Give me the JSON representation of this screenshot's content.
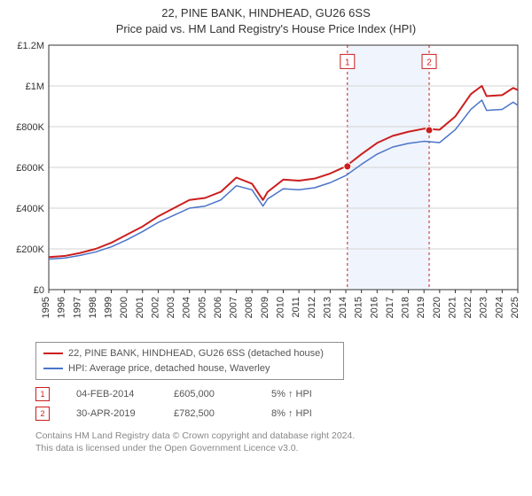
{
  "title": "22, PINE BANK, HINDHEAD, GU26 6SS",
  "subtitle": "Price paid vs. HM Land Registry's House Price Index (HPI)",
  "chart": {
    "type": "line",
    "background_color": "#ffffff",
    "grid_color": "#d3d3d3",
    "axis_color": "#333333",
    "tick_label_color": "#333333",
    "tick_fontsize": 11,
    "y": {
      "min": 0,
      "max": 1200000,
      "step": 200000,
      "tick_labels": [
        "£0",
        "£200K",
        "£400K",
        "£600K",
        "£800K",
        "£1M",
        "£1.2M"
      ]
    },
    "x": {
      "min": 1995,
      "max": 2025,
      "step": 1,
      "tick_labels": [
        "1995",
        "1996",
        "1997",
        "1998",
        "1999",
        "2000",
        "2001",
        "2002",
        "2003",
        "2004",
        "2005",
        "2006",
        "2007",
        "2008",
        "2009",
        "2010",
        "2011",
        "2012",
        "2013",
        "2014",
        "2015",
        "2016",
        "2017",
        "2018",
        "2019",
        "2020",
        "2021",
        "2022",
        "2023",
        "2024",
        "2025"
      ]
    },
    "highlight_band": {
      "x_from": 2014.1,
      "x_to": 2019.33,
      "fill": "#f0f4fc",
      "border_color": "#cc1e1e",
      "border_dash": "3 3"
    },
    "series": {
      "red": {
        "color": "#cc1e1e",
        "width": 2,
        "label": "22, PINE BANK, HINDHEAD, GU26 6SS (detached house)",
        "points": [
          [
            1995,
            160000
          ],
          [
            1996,
            165000
          ],
          [
            1997,
            180000
          ],
          [
            1998,
            200000
          ],
          [
            1999,
            230000
          ],
          [
            2000,
            270000
          ],
          [
            2001,
            310000
          ],
          [
            2002,
            360000
          ],
          [
            2003,
            400000
          ],
          [
            2004,
            440000
          ],
          [
            2005,
            450000
          ],
          [
            2006,
            480000
          ],
          [
            2007,
            550000
          ],
          [
            2008,
            520000
          ],
          [
            2008.7,
            440000
          ],
          [
            2009,
            480000
          ],
          [
            2010,
            540000
          ],
          [
            2011,
            535000
          ],
          [
            2012,
            545000
          ],
          [
            2013,
            570000
          ],
          [
            2014,
            605000
          ],
          [
            2015,
            665000
          ],
          [
            2016,
            720000
          ],
          [
            2017,
            755000
          ],
          [
            2018,
            775000
          ],
          [
            2019,
            790000
          ],
          [
            2020,
            785000
          ],
          [
            2021,
            850000
          ],
          [
            2022,
            960000
          ],
          [
            2022.7,
            1000000
          ],
          [
            2023,
            950000
          ],
          [
            2024,
            955000
          ],
          [
            2024.7,
            990000
          ],
          [
            2025,
            980000
          ]
        ],
        "markers": [
          {
            "id": "1",
            "x": 2014.1,
            "y": 605000
          },
          {
            "id": "2",
            "x": 2019.33,
            "y": 782500
          }
        ],
        "marker_labels": [
          {
            "id": "1",
            "x": 2014.1,
            "y_offset": 1120000
          },
          {
            "id": "2",
            "x": 2019.33,
            "y_offset": 1120000
          }
        ]
      },
      "blue": {
        "color": "#4a74c9",
        "width": 1.5,
        "label": "HPI: Average price, detached house, Waverley",
        "points": [
          [
            1995,
            150000
          ],
          [
            1996,
            155000
          ],
          [
            1997,
            168000
          ],
          [
            1998,
            185000
          ],
          [
            1999,
            210000
          ],
          [
            2000,
            245000
          ],
          [
            2001,
            285000
          ],
          [
            2002,
            330000
          ],
          [
            2003,
            365000
          ],
          [
            2004,
            400000
          ],
          [
            2005,
            410000
          ],
          [
            2006,
            440000
          ],
          [
            2007,
            510000
          ],
          [
            2008,
            490000
          ],
          [
            2008.7,
            410000
          ],
          [
            2009,
            445000
          ],
          [
            2010,
            495000
          ],
          [
            2011,
            490000
          ],
          [
            2012,
            500000
          ],
          [
            2013,
            525000
          ],
          [
            2014,
            560000
          ],
          [
            2015,
            615000
          ],
          [
            2016,
            665000
          ],
          [
            2017,
            700000
          ],
          [
            2018,
            718000
          ],
          [
            2019,
            728000
          ],
          [
            2020,
            722000
          ],
          [
            2021,
            785000
          ],
          [
            2022,
            885000
          ],
          [
            2022.7,
            930000
          ],
          [
            2023,
            880000
          ],
          [
            2024,
            885000
          ],
          [
            2024.7,
            920000
          ],
          [
            2025,
            905000
          ]
        ]
      }
    }
  },
  "legend": {
    "red_swatch": "#cc1e1e",
    "blue_swatch": "#4a74c9",
    "red_label": "22, PINE BANK, HINDHEAD, GU26 6SS (detached house)",
    "blue_label": "HPI: Average price, detached house, Waverley"
  },
  "table": {
    "rows": [
      {
        "marker": "1",
        "date": "04-FEB-2014",
        "price": "£605,000",
        "delta": "5% ↑ HPI"
      },
      {
        "marker": "2",
        "date": "30-APR-2019",
        "price": "£782,500",
        "delta": "8% ↑ HPI"
      }
    ]
  },
  "footer": {
    "line1": "Contains HM Land Registry data © Crown copyright and database right 2024.",
    "line2": "This data is licensed under the Open Government Licence v3.0."
  }
}
